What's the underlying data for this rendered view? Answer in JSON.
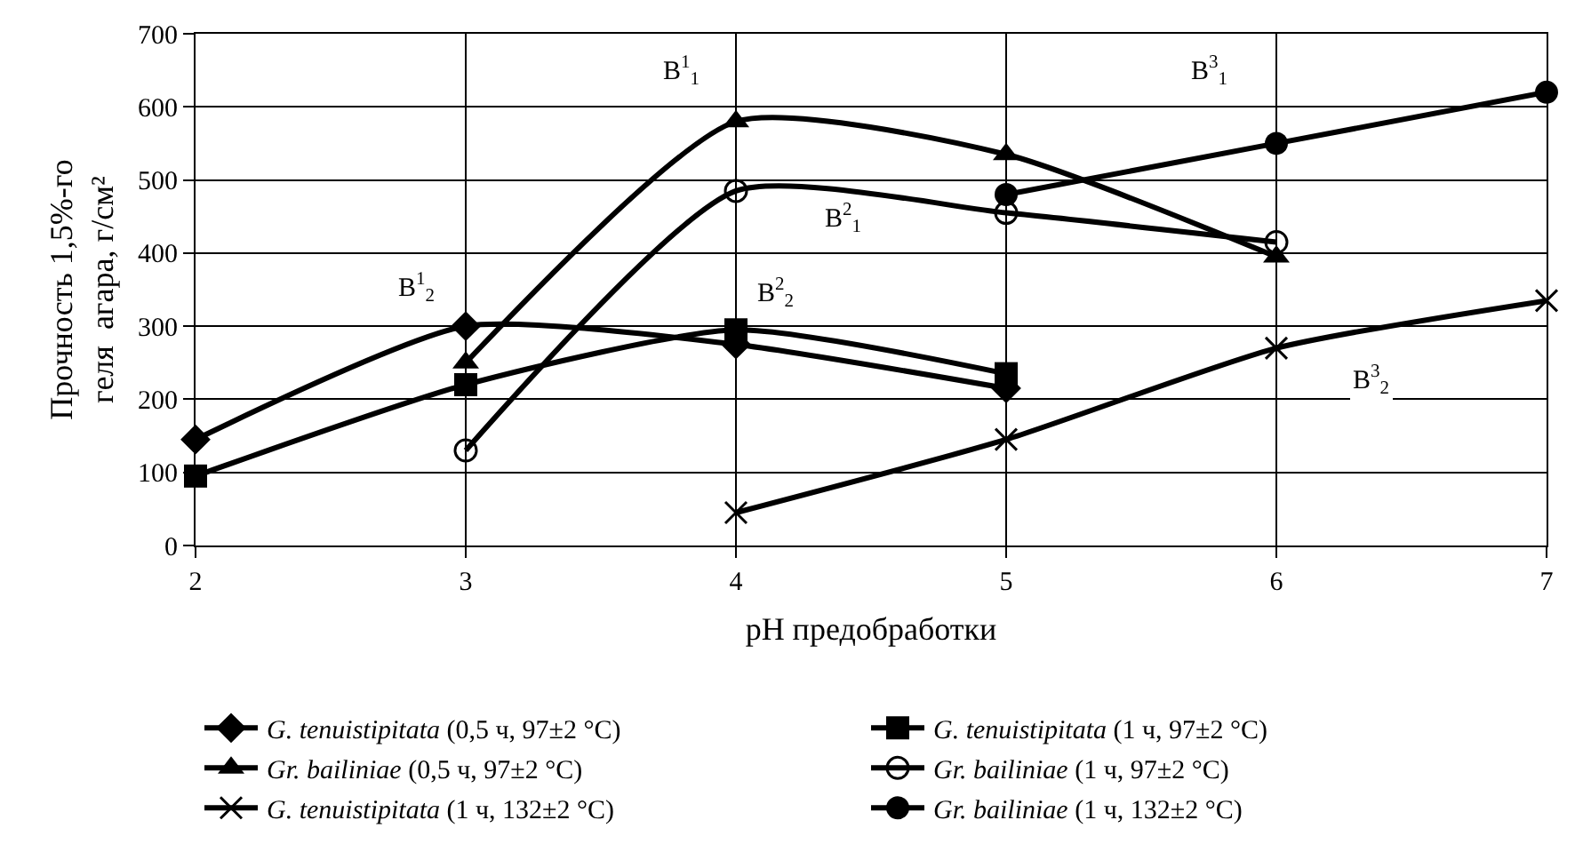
{
  "chart_data": {
    "type": "line",
    "xlabel": "pH предобработки",
    "ylabel": "Прочность 1,5%-го\nгеля  агара, г/см²",
    "xlim": [
      2,
      7
    ],
    "xticks": [
      2,
      3,
      4,
      5,
      6,
      7
    ],
    "ylim": [
      0,
      700
    ],
    "yticks": [
      0,
      100,
      200,
      300,
      400,
      500,
      600,
      700
    ],
    "grid": true,
    "legend": "bottom",
    "line_style": "solid",
    "series": [
      {
        "name": "G. tenuistipitata (0,5 ч, 97±2 °C)",
        "color": "#000000",
        "marker": "diamond",
        "x": [
          2,
          3,
          4,
          5
        ],
        "values": [
          145,
          300,
          275,
          215
        ]
      },
      {
        "name": "G. tenuistipitata (1 ч, 97±2 °C)",
        "color": "#000000",
        "marker": "square",
        "x": [
          2,
          3,
          4,
          5
        ],
        "values": [
          95,
          220,
          295,
          235
        ]
      },
      {
        "name": "Gr. bailiniae (0,5 ч, 97±2 °C)",
        "color": "#000000",
        "marker": "triangle",
        "x": [
          3,
          4,
          5,
          6
        ],
        "values": [
          250,
          580,
          535,
          395
        ]
      },
      {
        "name": "Gr. bailiniae (1 ч, 97±2 °C)",
        "color": "#000000",
        "marker": "circle-open",
        "x": [
          3,
          4,
          5,
          6
        ],
        "values": [
          130,
          485,
          455,
          415
        ]
      },
      {
        "name": "G. tenuistipitata (1 ч, 132±2 °C)",
        "color": "#000000",
        "marker": "cross",
        "x": [
          4,
          5,
          6,
          7
        ],
        "values": [
          45,
          145,
          270,
          335
        ]
      },
      {
        "name": "Gr. bailiniae (1 ч, 132±2 °C)",
        "color": "#000000",
        "marker": "circle",
        "x": [
          5,
          6,
          7
        ],
        "values": [
          480,
          550,
          620
        ]
      }
    ],
    "annotations": [
      "B$^{1}$$_{1}$",
      "B$^{1}$$_{2}$",
      "B$^{2}$$_{1}$",
      "B$^{2}$$_{2}$",
      "B$^{3}$$_{1}$",
      "B$^{3}$$_{2}$"
    ]
  }
}
